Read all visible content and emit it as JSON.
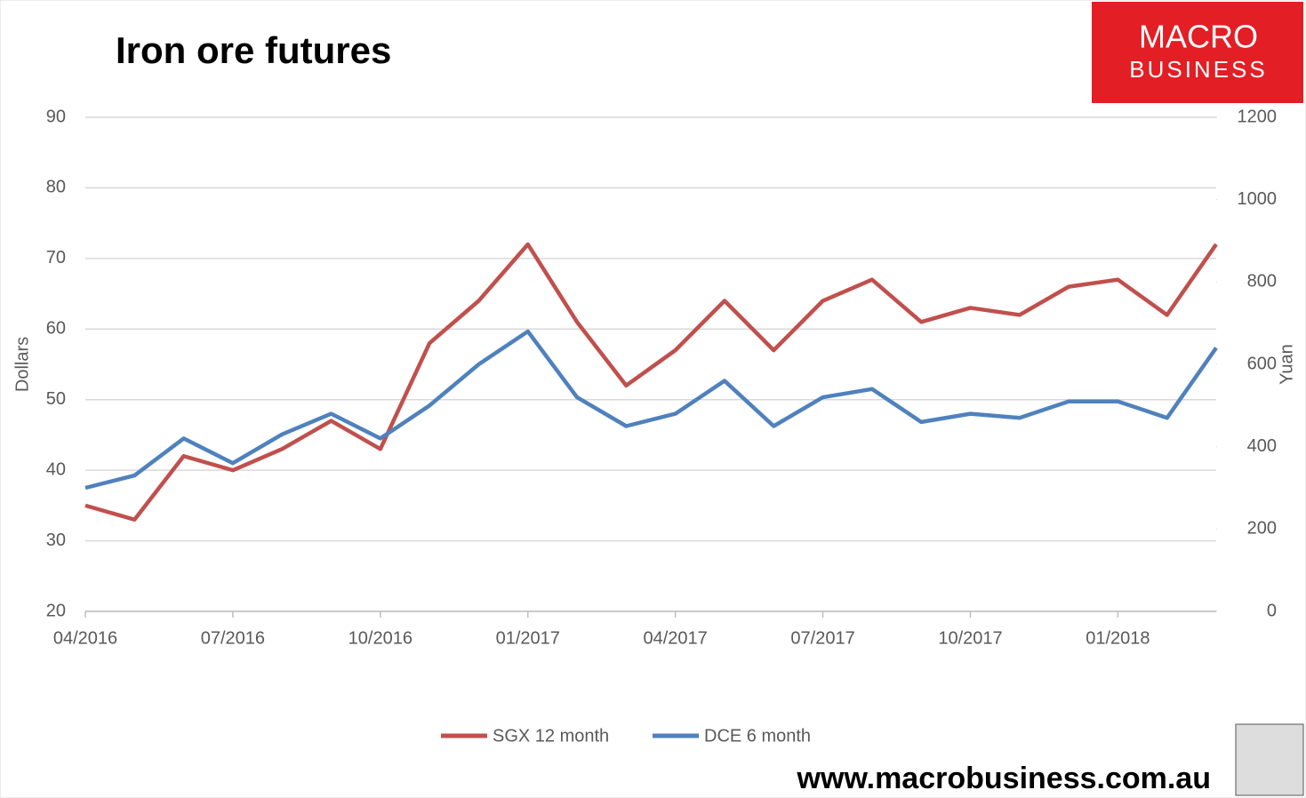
{
  "chart_data": {
    "type": "line",
    "title": "Iron ore futures",
    "x": [
      "04/2016",
      "05/2016",
      "06/2016",
      "07/2016",
      "08/2016",
      "09/2016",
      "10/2016",
      "11/2016",
      "12/2016",
      "01/2017",
      "02/2017",
      "03/2017",
      "04/2017",
      "05/2017",
      "06/2017",
      "07/2017",
      "08/2017",
      "09/2017",
      "10/2017",
      "11/2017",
      "12/2017",
      "01/2018",
      "02/2018",
      "03/2018"
    ],
    "xlim": [
      "04/2016",
      "03/2018"
    ],
    "xticks": [
      "04/2016",
      "07/2016",
      "10/2016",
      "01/2017",
      "04/2017",
      "07/2017",
      "10/2017",
      "01/2018"
    ],
    "ylabel": "Dollars",
    "y2label": "Yuan",
    "ylim": [
      20,
      90
    ],
    "yticks": [
      20,
      30,
      40,
      50,
      60,
      70,
      80,
      90
    ],
    "y2lim": [
      0,
      1200
    ],
    "y2ticks": [
      0,
      200,
      400,
      600,
      800,
      1000,
      1200
    ],
    "grid": true,
    "legend": "bottom",
    "series": [
      {
        "name": "SGX 12 month",
        "color": "#c0504d",
        "values": [
          35,
          33,
          42,
          40,
          43,
          47,
          43,
          58,
          64,
          72,
          61,
          52,
          57,
          64,
          57,
          64,
          67,
          61,
          63,
          62,
          66,
          67,
          62,
          72
        ]
      },
      {
        "name": "DCE 6 month",
        "color": "#4f81bd",
        "axis": "y2",
        "values": [
          300,
          330,
          420,
          360,
          430,
          480,
          420,
          500,
          600,
          680,
          520,
          450,
          480,
          560,
          450,
          520,
          540,
          460,
          480,
          470,
          510,
          510,
          470,
          640
        ]
      }
    ]
  },
  "branding": {
    "logo_lines": [
      "MACRO",
      "BUSINESS"
    ],
    "url": "www.macrobusiness.com.au"
  }
}
